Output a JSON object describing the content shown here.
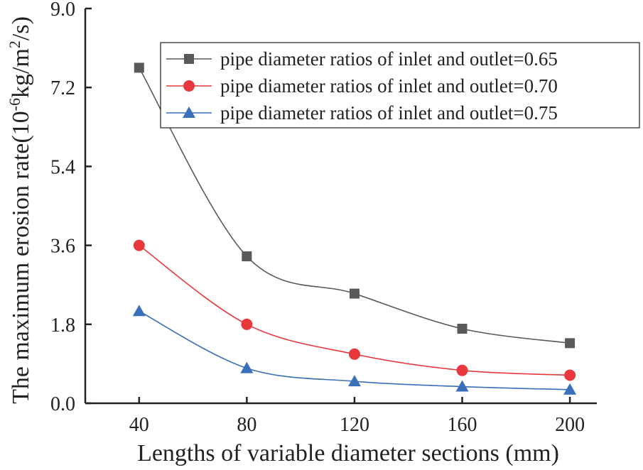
{
  "chart_data": {
    "type": "line",
    "title": "",
    "xlabel": "Lengths of variable diameter sections (mm)",
    "ylabel_main": "The maximum erosion rate(10",
    "ylabel_exp1": "-6",
    "ylabel_mid": "kg/m",
    "ylabel_exp2": "2",
    "ylabel_end": "/s)",
    "x": [
      40,
      80,
      120,
      160,
      200
    ],
    "x_ticks": [
      "40",
      "80",
      "120",
      "160",
      "200"
    ],
    "y_ticks": [
      "0.0",
      "1.8",
      "3.6",
      "5.4",
      "7.2",
      "9.0"
    ],
    "xlim": [
      20,
      210
    ],
    "ylim": [
      0,
      9
    ],
    "legend_position": "top-right",
    "series": [
      {
        "name": "pipe diameter ratios of inlet and outlet=0.65",
        "values": [
          7.65,
          3.35,
          2.5,
          1.7,
          1.37
        ],
        "color": "#595959",
        "marker": "square"
      },
      {
        "name": "pipe diameter ratios of inlet and outlet=0.70",
        "values": [
          3.6,
          1.8,
          1.12,
          0.75,
          0.64
        ],
        "color": "#e8383d",
        "marker": "circle"
      },
      {
        "name": "pipe diameter ratios of inlet and outlet=0.75",
        "values": [
          2.1,
          0.8,
          0.5,
          0.38,
          0.31
        ],
        "color": "#3a6fba",
        "marker": "triangle"
      }
    ]
  }
}
